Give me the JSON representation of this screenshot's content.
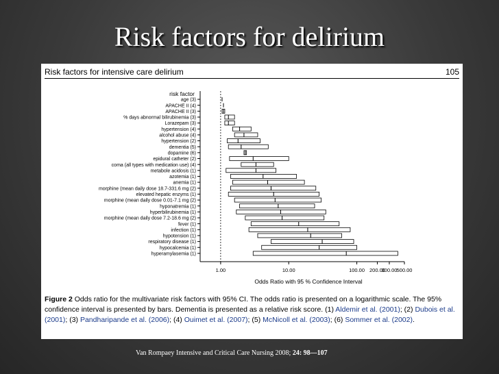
{
  "slide": {
    "title": "Risk factors for delirium",
    "source_text": "Van Rompaey Intensive and Critical Care Nursing 2008;",
    "source_ref": "24: 98—107"
  },
  "panel": {
    "header_left": "Risk factors for intensive care delirium",
    "header_right": "105"
  },
  "caption": {
    "fig_label": "Figure 2",
    "text1": "Odds ratio for the multivariate risk factors with 95% CI. The odds ratio is presented on a logarithmic scale. The 95% confidence interval is presented by bars. Dementia is presented as a relative risk score. (1) ",
    "ref1": "Aldemir et al. (2001)",
    "sep1": "; (2) ",
    "ref2": "Dubois et al. (2001)",
    "sep2": "; (3) ",
    "ref3": "Pandharipande et al. (2006)",
    "sep3": "; (4) ",
    "ref4": "Ouimet et al. (2007)",
    "sep4": "; (5) ",
    "ref5": "McNicoll et al. (2003)",
    "sep5": "; (6) ",
    "ref6": "Sommer et al. (2002)",
    "end": "."
  },
  "colors": {
    "background": "#3a3a3a",
    "panel": "#ffffff",
    "ink": "#000000",
    "link": "#1a3a8a"
  },
  "chart_data": {
    "type": "bar",
    "subtype": "forest-plot",
    "title": "",
    "ylabel": "risk factor",
    "xlabel": "Odds Ratio with 95 % Confidence Interval",
    "xscale": "log",
    "xlim": [
      0.5,
      500
    ],
    "x_ticks": [
      1,
      10,
      100,
      200,
      300,
      500
    ],
    "x_tick_labels": [
      "1.00",
      "10.00",
      "100.00",
      "200.00",
      "300.00",
      "500.00"
    ],
    "reference_line": 1,
    "grid": false,
    "categories": [
      "age (3)",
      "APACHE II (4)",
      "APACHE II (3)",
      "% days abnormal bilirubinemia (3)",
      "Lorazepam (3)",
      "hypertension (4)",
      "alcohol abuse (4)",
      "hypertension (2)",
      "dementia (5)",
      "dopamine (6)",
      "epidural catheter (2)",
      "coma (all types with medication use) (4)",
      "metabole acidosis (1)",
      "azotemia (1)",
      "anemia (1)",
      "morphine (mean daily dose 18.7-331.6 mg (2)",
      "elevated hepatic enzyms (1)",
      "morphine (mean daily dose 0.01-7.1 mg (2)",
      "hyponatremia (1)",
      "hyperbilirubinemia (1)",
      "morphine (mean daily dose 7.2-18.6 mg (2)",
      "fever (1)",
      "infection (1)",
      "hypotension (1)",
      "respiratory disease (1)",
      "hypocalcemia (1)",
      "hyperamylasemia (1)"
    ],
    "series": [
      {
        "name": "",
        "low": [
          1.03,
          1.07,
          1.05,
          1.15,
          1.15,
          1.5,
          1.6,
          1.25,
          1.3,
          2.2,
          1.35,
          2.0,
          1.2,
          1.4,
          1.5,
          1.4,
          1.3,
          1.6,
          1.9,
          1.7,
          2.3,
          2.8,
          2.6,
          3.5,
          5.5,
          4.0,
          3.0
        ],
        "point": [
          1.05,
          1.1,
          1.1,
          1.3,
          1.3,
          1.9,
          2.2,
          1.8,
          2.0,
          2.3,
          3.0,
          3.3,
          3.3,
          4.2,
          4.9,
          5.5,
          6.0,
          6.3,
          7.0,
          7.6,
          8.0,
          14.0,
          19.0,
          21.0,
          31.0,
          28.0,
          70.0
        ],
        "high": [
          1.08,
          1.12,
          1.15,
          1.6,
          1.6,
          2.8,
          3.5,
          3.8,
          5.0,
          2.4,
          10.0,
          6.0,
          6.5,
          13.0,
          17.0,
          25.0,
          28.0,
          30.0,
          24.0,
          35.0,
          33.0,
          55.0,
          80.0,
          60.0,
          90.0,
          100.0,
          400.0
        ]
      }
    ]
  }
}
